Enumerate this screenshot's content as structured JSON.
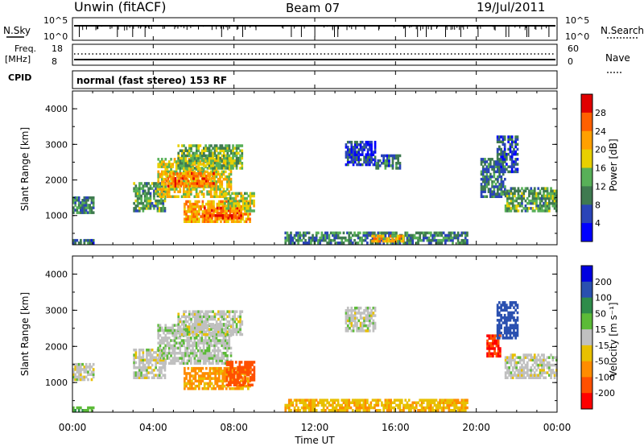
{
  "header": {
    "station": "Unwin (fitACF)",
    "beam": "Beam 07",
    "date": "19/Jul/2011"
  },
  "noise_panel": {
    "left_label": "N.Sky",
    "left_ticks": [
      "10^5",
      "10^0"
    ],
    "right_label": "N.Search",
    "right_ticks": [
      "10^5",
      "10^0"
    ]
  },
  "freq_panel": {
    "left_label_1": "Freq.",
    "left_label_2": "[MHz]",
    "left_ticks": [
      "18",
      "8"
    ],
    "right_label": "Nave",
    "right_ticks": [
      "60",
      "0"
    ]
  },
  "cpid_panel": {
    "label": "CPID",
    "text": "normal (fast stereo) 153 RF"
  },
  "x_axis": {
    "label": "Time UT",
    "ticks": [
      "00:00",
      "04:00",
      "08:00",
      "12:00",
      "16:00",
      "20:00",
      "00:00"
    ]
  },
  "colors": {
    "power_scale": [
      "#0000ff",
      "#2a44b8",
      "#3f7a50",
      "#58b058",
      "#e8d000",
      "#ffa000",
      "#ff6000",
      "#e00000"
    ],
    "velocity_scale": [
      "#0000e0",
      "#2a50b0",
      "#2e8c4a",
      "#5cbb38",
      "#c0c0c0",
      "#e8c000",
      "#ff8c00",
      "#ff5000",
      "#ff0000"
    ]
  },
  "chart_data": [
    {
      "type": "heatmap",
      "quantity": "Power",
      "ylabel": "Slant Range [km]",
      "xlabel": "Time UT",
      "xlim": [
        0,
        24
      ],
      "ylim": [
        180,
        4500
      ],
      "yticks": [
        "1000",
        "2000",
        "3000",
        "4000"
      ],
      "colorbar": {
        "label": "Power [dB]",
        "ticks": [
          "4",
          "8",
          "12",
          "16",
          "20",
          "24",
          "28"
        ],
        "range": [
          0,
          32
        ]
      },
      "regions": [
        {
          "t": [
            0.0,
            1.0
          ],
          "r": [
            1050,
            1500
          ],
          "level": 10
        },
        {
          "t": [
            3.0,
            4.6
          ],
          "r": [
            1100,
            1900
          ],
          "level": 12
        },
        {
          "t": [
            4.2,
            7.8
          ],
          "r": [
            1500,
            2600
          ],
          "level": 18
        },
        {
          "t": [
            4.6,
            7.0
          ],
          "r": [
            1800,
            2200
          ],
          "level": 24
        },
        {
          "t": [
            5.2,
            8.4
          ],
          "r": [
            2300,
            3000
          ],
          "level": 14
        },
        {
          "t": [
            5.5,
            8.8
          ],
          "r": [
            800,
            1400
          ],
          "level": 22
        },
        {
          "t": [
            6.5,
            8.3
          ],
          "r": [
            900,
            1200
          ],
          "level": 27
        },
        {
          "t": [
            7.5,
            9.0
          ],
          "r": [
            1100,
            1600
          ],
          "level": 16
        },
        {
          "t": [
            13.5,
            15.0
          ],
          "r": [
            2400,
            3100
          ],
          "level": 6
        },
        {
          "t": [
            15.0,
            16.2
          ],
          "r": [
            2300,
            2700
          ],
          "level": 8
        },
        {
          "t": [
            10.5,
            19.5
          ],
          "r": [
            200,
            520
          ],
          "level": 10
        },
        {
          "t": [
            14.8,
            16.4
          ],
          "r": [
            250,
            450
          ],
          "level": 20
        },
        {
          "t": [
            20.2,
            21.4
          ],
          "r": [
            1500,
            2600
          ],
          "level": 9
        },
        {
          "t": [
            21.4,
            24.0
          ],
          "r": [
            1100,
            1800
          ],
          "level": 12
        },
        {
          "t": [
            21.0,
            22.0
          ],
          "r": [
            2200,
            3200
          ],
          "level": 7
        },
        {
          "t": [
            0.0,
            1.0
          ],
          "r": [
            200,
            300
          ],
          "level": 8
        }
      ]
    },
    {
      "type": "heatmap",
      "quantity": "Velocity",
      "ylabel": "Slant Range [km]",
      "xlabel": "Time UT",
      "xlim": [
        0,
        24
      ],
      "ylim": [
        180,
        4500
      ],
      "yticks": [
        "1000",
        "2000",
        "3000",
        "4000"
      ],
      "colorbar": {
        "label": "Velocity [m s⁻¹]",
        "ticks": [
          "200",
          "100",
          "50",
          "15",
          "-15",
          "-50",
          "-100",
          "-200"
        ],
        "range": [
          -250,
          250
        ]
      },
      "regions": [
        {
          "t": [
            0.0,
            1.0
          ],
          "r": [
            1050,
            1500
          ],
          "v": 0
        },
        {
          "t": [
            3.0,
            4.6
          ],
          "r": [
            1100,
            1900
          ],
          "v": 0
        },
        {
          "t": [
            4.2,
            7.8
          ],
          "r": [
            1500,
            2600
          ],
          "v": 5
        },
        {
          "t": [
            5.2,
            8.4
          ],
          "r": [
            2300,
            3000
          ],
          "v": 0
        },
        {
          "t": [
            5.5,
            8.8
          ],
          "r": [
            800,
            1400
          ],
          "v": -60
        },
        {
          "t": [
            7.6,
            9.0
          ],
          "r": [
            900,
            1600
          ],
          "v": -180
        },
        {
          "t": [
            13.5,
            15.0
          ],
          "r": [
            2400,
            3100
          ],
          "v": 0
        },
        {
          "t": [
            10.5,
            19.5
          ],
          "r": [
            200,
            520
          ],
          "v": -40
        },
        {
          "t": [
            20.5,
            21.2
          ],
          "r": [
            1700,
            2300
          ],
          "v": -200
        },
        {
          "t": [
            21.0,
            22.0
          ],
          "r": [
            2200,
            3200
          ],
          "v": 150
        },
        {
          "t": [
            21.4,
            24.0
          ],
          "r": [
            1100,
            1800
          ],
          "v": 0
        },
        {
          "t": [
            0.0,
            1.0
          ],
          "r": [
            200,
            300
          ],
          "v": 40
        }
      ]
    }
  ]
}
